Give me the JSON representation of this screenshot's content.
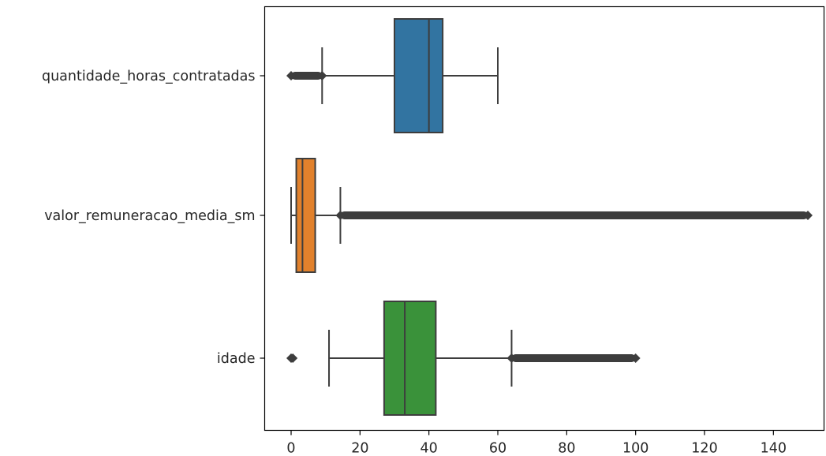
{
  "chart_data": {
    "type": "boxplot",
    "orientation": "horizontal",
    "title": "",
    "xlabel": "",
    "ylabel": "",
    "xlim": [
      -8,
      155
    ],
    "xticks": [
      0,
      20,
      40,
      60,
      80,
      100,
      120,
      140
    ],
    "grid": false,
    "categories": [
      "quantidade_horas_contratadas",
      "valor_remuneracao_media_sm",
      "idade"
    ],
    "series": [
      {
        "category": "quantidade_horas_contratadas",
        "color": "#3274a1",
        "whisker_low": 9,
        "q1": 30,
        "median": 40,
        "q3": 44,
        "whisker_high": 60,
        "outliers": {
          "low_range": [
            0,
            9
          ],
          "high_range": null
        }
      },
      {
        "category": "valor_remuneracao_media_sm",
        "color": "#e1812c",
        "whisker_low": 0,
        "q1": 1.5,
        "median": 3.3,
        "q3": 7,
        "whisker_high": 14.3,
        "outliers": {
          "low_range": null,
          "high_range": [
            14.3,
            150
          ]
        }
      },
      {
        "category": "idade",
        "color": "#3a923a",
        "whisker_low": 11,
        "q1": 27,
        "median": 33,
        "q3": 42,
        "whisker_high": 64,
        "outliers": {
          "low_range": [
            0,
            0.5
          ],
          "high_range": [
            64,
            100
          ]
        }
      }
    ]
  }
}
